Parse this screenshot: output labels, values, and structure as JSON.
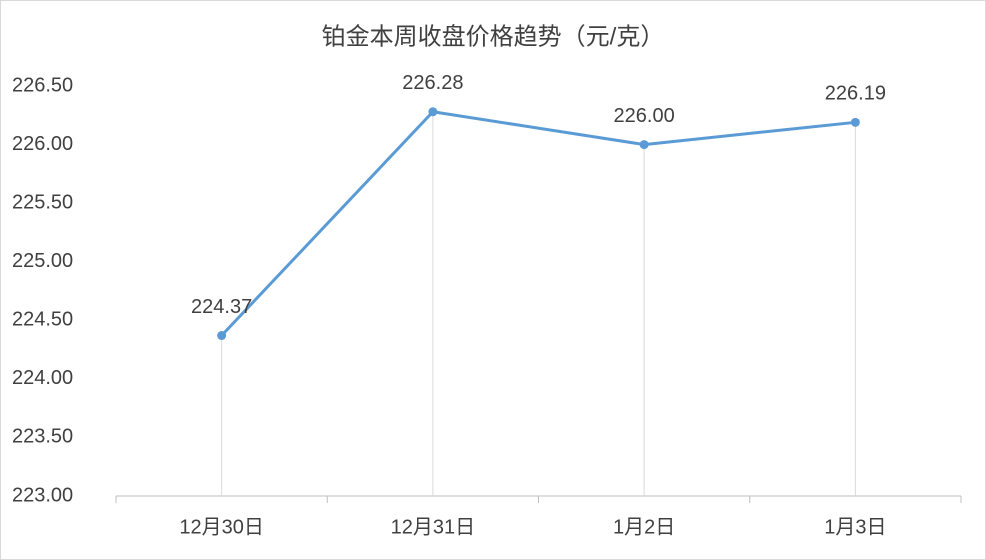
{
  "chart_data": {
    "type": "line",
    "title": "铂金本周收盘价格趋势（元/克）",
    "categories": [
      "12月30日",
      "12月31日",
      "1月2日",
      "1月3日"
    ],
    "values": [
      224.37,
      226.28,
      226.0,
      226.19
    ],
    "value_labels": [
      "224.37",
      "226.28",
      "226.00",
      "226.19"
    ],
    "color": "#5b9bd5",
    "ylim": [
      223,
      226.5
    ],
    "yticks": [
      {
        "value": 223,
        "label": "223.00"
      },
      {
        "value": 223.5,
        "label": "223.50"
      },
      {
        "value": 224,
        "label": "224.00"
      },
      {
        "value": 224.5,
        "label": "224.50"
      },
      {
        "value": 225,
        "label": "225.00"
      },
      {
        "value": 225.5,
        "label": "225.50"
      },
      {
        "value": 226,
        "label": "226.00"
      },
      {
        "value": 226.5,
        "label": "226.50"
      }
    ],
    "drop_lines": true
  }
}
